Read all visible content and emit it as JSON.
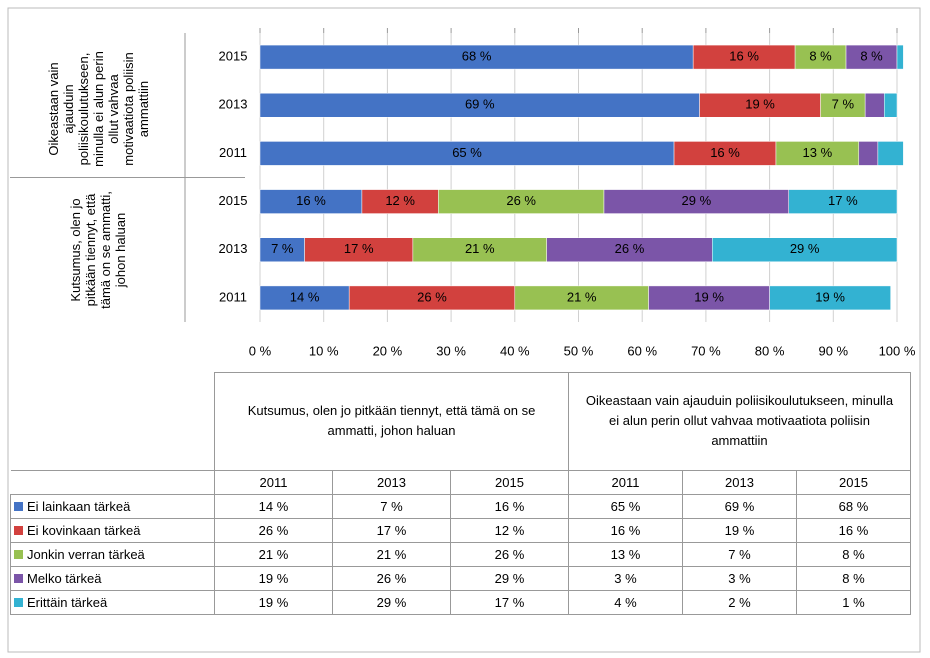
{
  "chart_data": {
    "type": "bar",
    "orientation": "horizontal",
    "stacked": true,
    "groups": [
      {
        "label": "Kutsumus, olen jo pitkään tiennyt, että tämä on se ammatti, johon haluan",
        "categories": [
          "2011",
          "2013",
          "2015"
        ]
      },
      {
        "label": "Oikeastaan vain ajauduin poliisikoulutukseen, minulla ei alun perin ollut vahvaa motivaatiota poliisin ammattiin",
        "categories": [
          "2011",
          "2013",
          "2015"
        ]
      }
    ],
    "series": [
      {
        "name": "Ei lainkaan tärkeä",
        "color": "#4473c5",
        "values": [
          14,
          7,
          16,
          65,
          69,
          68
        ],
        "value_labels": [
          "14 %",
          "7 %",
          "16 %",
          "65 %",
          "69 %",
          "68 %"
        ]
      },
      {
        "name": "Ei kovinkaan tärkeä",
        "color": "#d2413e",
        "values": [
          26,
          17,
          12,
          16,
          19,
          16
        ],
        "value_labels": [
          "26 %",
          "17 %",
          "12 %",
          "16 %",
          "19 %",
          "16 %"
        ]
      },
      {
        "name": "Jonkin verran tärkeä",
        "color": "#98c152",
        "values": [
          21,
          21,
          26,
          13,
          7,
          8
        ],
        "value_labels": [
          "21 %",
          "21 %",
          "26 %",
          "13 %",
          "7 %",
          "8 %"
        ]
      },
      {
        "name": "Melko tärkeä",
        "color": "#7b55a8",
        "values": [
          19,
          26,
          29,
          3,
          3,
          8
        ],
        "value_labels": [
          "19 %",
          "26 %",
          "29 %",
          "3 %",
          "3 %",
          "8 %"
        ]
      },
      {
        "name": "Erittäin tärkeä",
        "color": "#33b2d2",
        "values": [
          19,
          29,
          17,
          4,
          2,
          1
        ],
        "value_labels": [
          "19 %",
          "29 %",
          "17 %",
          "4 %",
          "2 %",
          "1 %"
        ]
      }
    ],
    "xlim": [
      0,
      100
    ],
    "xticks": [
      {
        "value": 0,
        "label": "0 %"
      },
      {
        "value": 10,
        "label": "10 %"
      },
      {
        "value": 20,
        "label": "20 %"
      },
      {
        "value": 30,
        "label": "30 %"
      },
      {
        "value": 40,
        "label": "40 %"
      },
      {
        "value": 50,
        "label": "50 %"
      },
      {
        "value": 60,
        "label": "60 %"
      },
      {
        "value": 70,
        "label": "70 %"
      },
      {
        "value": 80,
        "label": "80 %"
      },
      {
        "value": 90,
        "label": "90 %"
      },
      {
        "value": 100,
        "label": "100 %"
      }
    ],
    "grid": true
  }
}
